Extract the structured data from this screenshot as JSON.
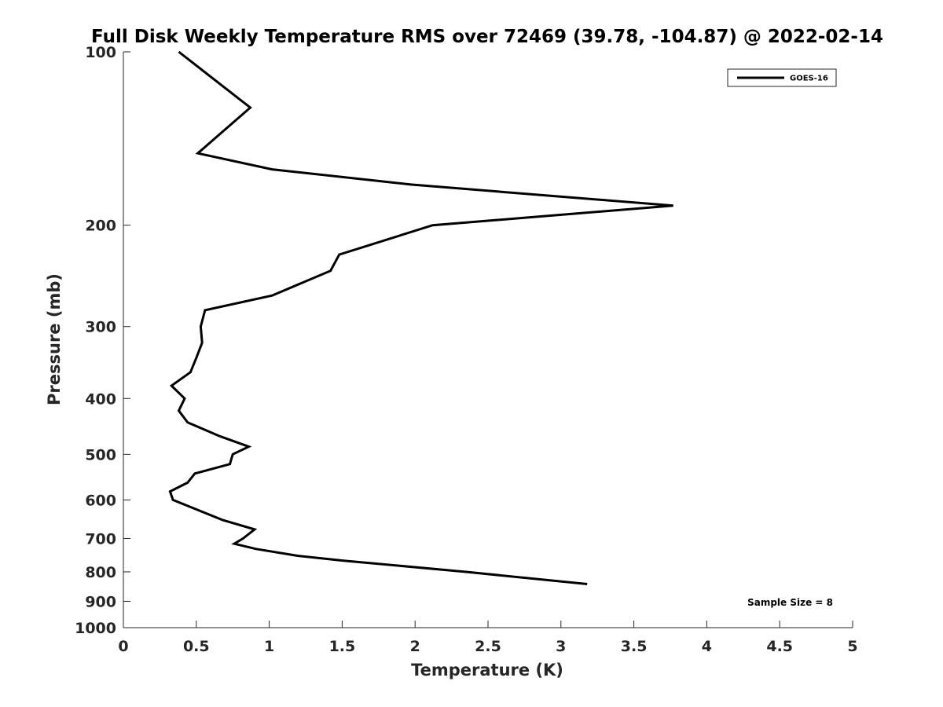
{
  "chart_data": {
    "type": "line",
    "title": "Full Disk Weekly Temperature RMS over 72469 (39.78, -104.87) @ 2022-02-14",
    "xlabel": "Temperature (K)",
    "ylabel": "Pressure (mb)",
    "xlim": [
      0,
      5
    ],
    "ylim": [
      100,
      1000
    ],
    "y_scale": "log",
    "y_reversed": true,
    "x_ticks": [
      0,
      0.5,
      1,
      1.5,
      2,
      2.5,
      3,
      3.5,
      4,
      4.5,
      5
    ],
    "x_tick_labels": [
      "0",
      "0.5",
      "1",
      "1.5",
      "2",
      "2.5",
      "3",
      "3.5",
      "4",
      "4.5",
      "5"
    ],
    "y_ticks": [
      100,
      200,
      300,
      400,
      500,
      600,
      700,
      800,
      900,
      1000
    ],
    "y_tick_labels": [
      "100",
      "200",
      "300",
      "400",
      "500",
      "600",
      "700",
      "800",
      "900",
      "1000"
    ],
    "grid": false,
    "legend_position": "top-right",
    "annotation": "Sample Size = 8",
    "series": [
      {
        "name": "GOES-16",
        "color": "#000000",
        "points": [
          [
            0.38,
            100
          ],
          [
            0.87,
            125
          ],
          [
            0.51,
            150
          ],
          [
            1.02,
            160
          ],
          [
            1.97,
            170
          ],
          [
            3.77,
            185
          ],
          [
            2.12,
            200
          ],
          [
            1.48,
            225
          ],
          [
            1.42,
            240
          ],
          [
            1.02,
            265
          ],
          [
            0.56,
            281
          ],
          [
            0.53,
            300
          ],
          [
            0.54,
            320
          ],
          [
            0.5,
            340
          ],
          [
            0.46,
            360
          ],
          [
            0.33,
            380
          ],
          [
            0.42,
            400
          ],
          [
            0.38,
            420
          ],
          [
            0.44,
            440
          ],
          [
            0.66,
            465
          ],
          [
            0.86,
            485
          ],
          [
            0.75,
            500
          ],
          [
            0.73,
            520
          ],
          [
            0.49,
            540
          ],
          [
            0.44,
            560
          ],
          [
            0.32,
            580
          ],
          [
            0.34,
            600
          ],
          [
            0.68,
            650
          ],
          [
            0.9,
            675
          ],
          [
            0.82,
            700
          ],
          [
            0.76,
            715
          ],
          [
            0.91,
            730
          ],
          [
            1.19,
            750
          ],
          [
            1.51,
            765
          ],
          [
            2.35,
            800
          ],
          [
            3.18,
            840
          ]
        ]
      }
    ]
  }
}
